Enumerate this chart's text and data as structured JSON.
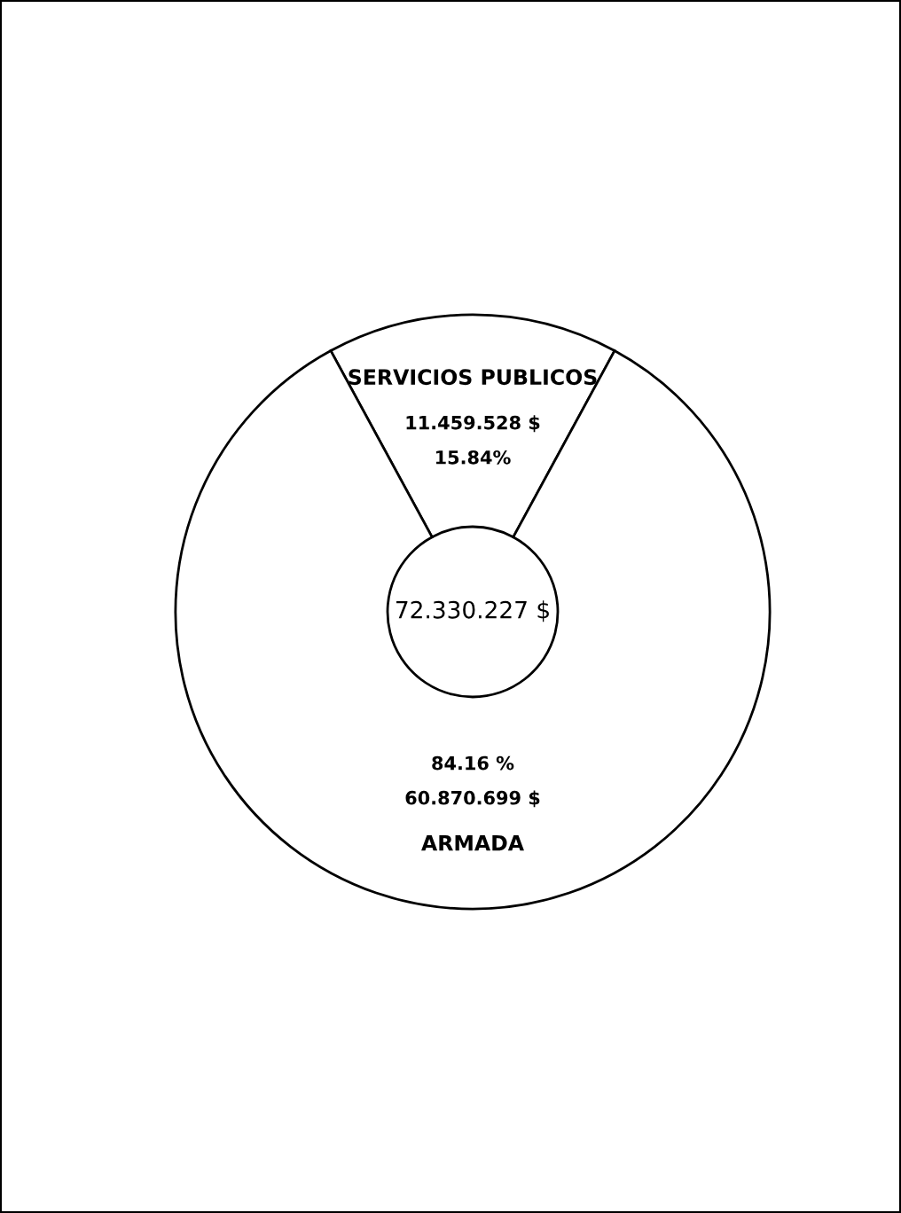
{
  "chart_data": {
    "type": "donut",
    "categories": [
      "SERVICIOS PUBLICOS",
      "ARMADA"
    ],
    "values": [
      11459528,
      60870699
    ],
    "colors": [
      "#ffffff",
      "#ffffff"
    ],
    "value_labels": [
      "11.459.528 $\n15.84%",
      "84.16 %\n60.870.699 $"
    ],
    "annotations": [
      "72.330.227 $"
    ],
    "legend": false
  }
}
